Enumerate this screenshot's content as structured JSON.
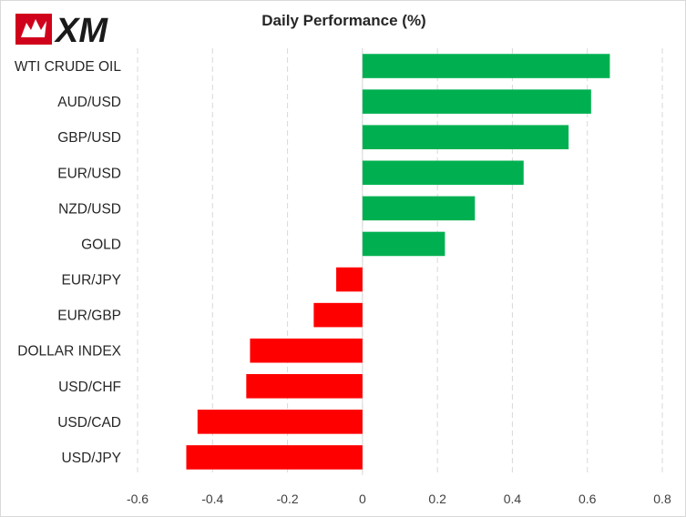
{
  "brand": {
    "logo_text": "XM"
  },
  "chart_data": {
    "type": "bar",
    "orientation": "horizontal",
    "title": "Daily Performance (%)",
    "xlabel": "",
    "ylabel": "",
    "xlim": [
      -0.6,
      0.8
    ],
    "x_ticks": [
      -0.6,
      -0.4,
      -0.2,
      0,
      0.2,
      0.4,
      0.6,
      0.8
    ],
    "x_tick_labels": [
      "-0.6",
      "-0.4",
      "-0.2",
      "0",
      "0.2",
      "0.4",
      "0.6",
      "0.8"
    ],
    "grid": "vertical dashed",
    "legend": "none",
    "categories": [
      "WTI CRUDE OIL",
      "AUD/USD",
      "GBP/USD",
      "EUR/USD",
      "NZD/USD",
      "GOLD",
      "EUR/JPY",
      "EUR/GBP",
      "DOLLAR INDEX",
      "USD/CHF",
      "USD/CAD",
      "USD/JPY"
    ],
    "values": [
      0.66,
      0.61,
      0.55,
      0.43,
      0.3,
      0.22,
      -0.07,
      -0.13,
      -0.3,
      -0.31,
      -0.44,
      -0.47
    ],
    "colors": {
      "positive": "#00b050",
      "negative": "#ff0000"
    }
  }
}
